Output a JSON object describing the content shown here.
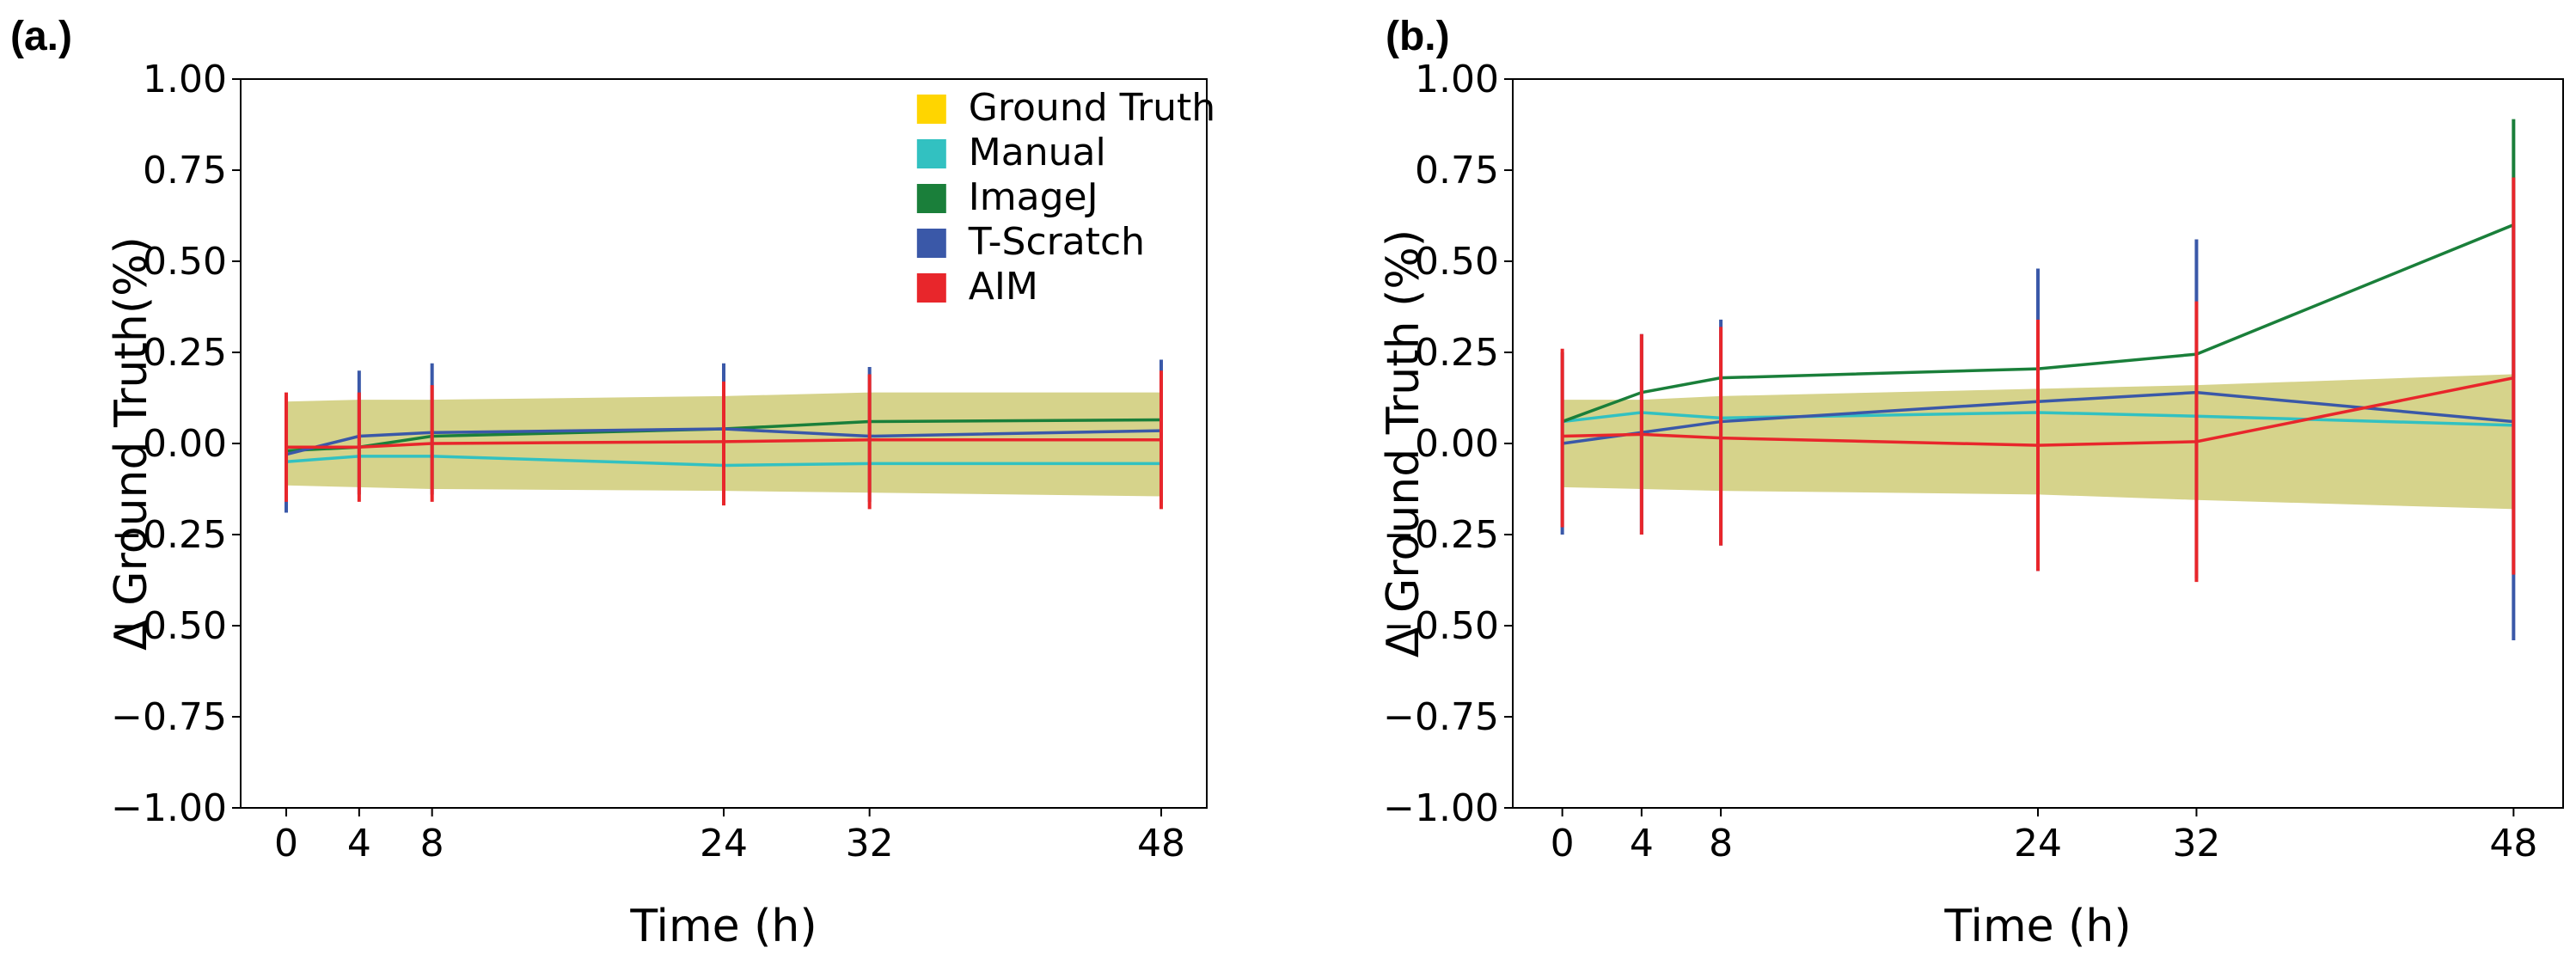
{
  "chart_data": [
    {
      "type": "line",
      "panel_label": "(a.)",
      "xlabel": "Time (h)",
      "ylabel": "Δ Ground Truth(%)",
      "ylim": [
        -1.0,
        1.0
      ],
      "xlim": [
        -2.5,
        50.5
      ],
      "yticks": [
        "1.00",
        "0.75",
        "0.50",
        "0.25",
        "0.00",
        "−0.25",
        "−0.50",
        "−0.75",
        "−1.00"
      ],
      "ytick_values": [
        1.0,
        0.75,
        0.5,
        0.25,
        0.0,
        -0.25,
        -0.5,
        -0.75,
        -1.0
      ],
      "xticks": [
        "0",
        "4",
        "8",
        "24",
        "32",
        "48"
      ],
      "x": [
        0,
        4,
        8,
        24,
        32,
        48
      ],
      "grid": false,
      "legend_placement": "top-right",
      "band": {
        "name": "Ground Truth",
        "color": "#d6d38b",
        "upper": [
          0.115,
          0.12,
          0.12,
          0.13,
          0.14,
          0.14
        ],
        "lower": [
          -0.115,
          -0.12,
          -0.125,
          -0.13,
          -0.135,
          -0.145
        ]
      },
      "series": [
        {
          "name": "Manual",
          "color": "#32c1c1",
          "values": [
            -0.05,
            -0.035,
            -0.035,
            -0.06,
            -0.055,
            -0.055
          ],
          "err_low": null,
          "err_high": null
        },
        {
          "name": "ImageJ",
          "color": "#1a7f3a",
          "values": [
            -0.02,
            -0.01,
            0.02,
            0.04,
            0.06,
            0.065
          ],
          "err_low": null,
          "err_high": null
        },
        {
          "name": "T-Scratch",
          "color": "#3a58a8",
          "values": [
            -0.03,
            0.02,
            0.03,
            0.04,
            0.02,
            0.035
          ],
          "err_low": [
            -0.19,
            -0.14,
            -0.14,
            -0.14,
            -0.16,
            -0.16
          ],
          "err_high": [
            0.13,
            0.2,
            0.22,
            0.22,
            0.21,
            0.23
          ]
        },
        {
          "name": "AIM",
          "color": "#e8262b",
          "values": [
            -0.01,
            -0.01,
            0.0,
            0.005,
            0.01,
            0.01
          ],
          "err_low": [
            -0.16,
            -0.16,
            -0.16,
            -0.17,
            -0.18,
            -0.18
          ],
          "err_high": [
            0.14,
            0.14,
            0.16,
            0.17,
            0.19,
            0.2
          ]
        }
      ],
      "legend": [
        {
          "name": "Ground Truth",
          "color": "#ffd500"
        },
        {
          "name": "Manual",
          "color": "#32c1c1"
        },
        {
          "name": "ImageJ",
          "color": "#1a7f3a"
        },
        {
          "name": "T-Scratch",
          "color": "#3a58a8"
        },
        {
          "name": "AIM",
          "color": "#e8262b"
        }
      ]
    },
    {
      "type": "line",
      "panel_label": "(b.)",
      "xlabel": "Time (h)",
      "ylabel": "Δ Ground Truth (%)",
      "ylim": [
        -1.0,
        1.0
      ],
      "xlim": [
        -2.5,
        50.5
      ],
      "yticks": [
        "1.00",
        "0.75",
        "0.50",
        "0.25",
        "0.00",
        "−0.25",
        "−0.50",
        "−0.75",
        "−1.00"
      ],
      "ytick_values": [
        1.0,
        0.75,
        0.5,
        0.25,
        0.0,
        -0.25,
        -0.5,
        -0.75,
        -1.0
      ],
      "xticks": [
        "0",
        "4",
        "8",
        "24",
        "32",
        "48"
      ],
      "x": [
        0,
        4,
        8,
        24,
        32,
        48
      ],
      "grid": false,
      "band": {
        "name": "Ground Truth",
        "color": "#d6d38b",
        "upper": [
          0.12,
          0.12,
          0.13,
          0.15,
          0.16,
          0.19
        ],
        "lower": [
          -0.12,
          -0.125,
          -0.13,
          -0.14,
          -0.155,
          -0.18
        ]
      },
      "series": [
        {
          "name": "Manual",
          "color": "#32c1c1",
          "values": [
            0.06,
            0.085,
            0.07,
            0.085,
            0.075,
            0.05
          ],
          "err_low": null,
          "err_high": null
        },
        {
          "name": "ImageJ",
          "color": "#1a7f3a",
          "values": [
            0.06,
            0.14,
            0.18,
            0.205,
            0.245,
            0.6
          ],
          "err_low": [
            null,
            null,
            null,
            null,
            null,
            0.18
          ],
          "err_high": [
            null,
            null,
            null,
            null,
            null,
            0.89
          ]
        },
        {
          "name": "T-Scratch",
          "color": "#3a58a8",
          "values": [
            0.0,
            0.03,
            0.06,
            0.115,
            0.14,
            0.06
          ],
          "err_low": [
            -0.25,
            -0.25,
            -0.28,
            -0.35,
            -0.37,
            -0.54
          ],
          "err_high": [
            0.25,
            0.3,
            0.34,
            0.48,
            0.56,
            0.6
          ]
        },
        {
          "name": "AIM",
          "color": "#e8262b",
          "values": [
            0.02,
            0.025,
            0.015,
            -0.005,
            0.005,
            0.18
          ],
          "err_low": [
            -0.23,
            -0.25,
            -0.28,
            -0.35,
            -0.38,
            -0.36
          ],
          "err_high": [
            0.26,
            0.3,
            0.32,
            0.34,
            0.39,
            0.73
          ]
        }
      ],
      "legend": []
    }
  ]
}
